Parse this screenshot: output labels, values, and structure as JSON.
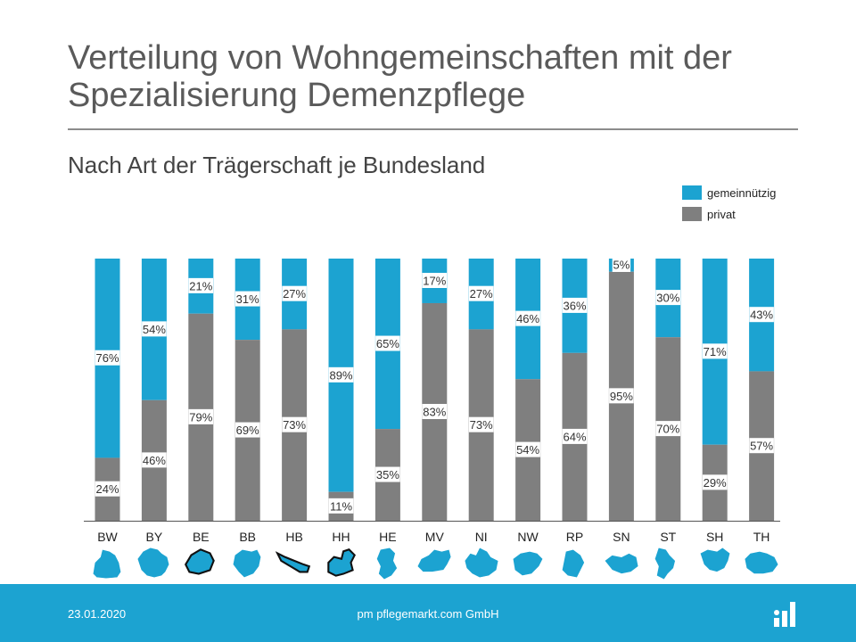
{
  "slide": {
    "title": "Verteilung von Wohngemeinschaften mit der Spezialisierung Demenzpflege",
    "subtitle": "Nach Art der Trägerschaft je Bundesland"
  },
  "legend": [
    {
      "label": "gemeinnützig",
      "color": "#1ca3d1"
    },
    {
      "label": "privat",
      "color": "#7f7f7f"
    }
  ],
  "chart_data": {
    "type": "bar",
    "stacked": true,
    "percent": true,
    "categories": [
      "BW",
      "BY",
      "BE",
      "BB",
      "HB",
      "HH",
      "HE",
      "MV",
      "NI",
      "NW",
      "RP",
      "SN",
      "ST",
      "SH",
      "TH"
    ],
    "series": [
      {
        "name": "privat",
        "color": "#7f7f7f",
        "values": [
          24,
          46,
          79,
          69,
          73,
          11,
          35,
          83,
          73,
          54,
          64,
          95,
          70,
          29,
          57
        ]
      },
      {
        "name": "gemeinnützig",
        "color": "#1ca3d1",
        "values": [
          76,
          54,
          21,
          31,
          27,
          89,
          65,
          17,
          27,
          46,
          36,
          5,
          30,
          71,
          43
        ]
      }
    ],
    "ylim": [
      0,
      100
    ],
    "title": "Verteilung von Wohngemeinschaften mit der Spezialisierung Demenzpflege",
    "xlabel": "",
    "ylabel": "",
    "legend_position": "top-right"
  },
  "map_icons": [
    {
      "state": "BW",
      "icon": "baden-wuerttemberg-map-icon",
      "color": "#1ca3d1"
    },
    {
      "state": "BY",
      "icon": "bayern-map-icon",
      "color": "#1ca3d1"
    },
    {
      "state": "BE",
      "icon": "berlin-map-icon",
      "color": "#1ca3d1"
    },
    {
      "state": "BB",
      "icon": "brandenburg-map-icon",
      "color": "#1ca3d1"
    },
    {
      "state": "HB",
      "icon": "bremen-map-icon",
      "color": "#1ca3d1"
    },
    {
      "state": "HH",
      "icon": "hamburg-map-icon",
      "color": "#1ca3d1"
    },
    {
      "state": "HE",
      "icon": "hessen-map-icon",
      "color": "#1ca3d1"
    },
    {
      "state": "MV",
      "icon": "mecklenburg-vorpommern-map-icon",
      "color": "#1ca3d1"
    },
    {
      "state": "NI",
      "icon": "niedersachsen-map-icon",
      "color": "#1ca3d1"
    },
    {
      "state": "NW",
      "icon": "nordrhein-westfalen-map-icon",
      "color": "#1ca3d1"
    },
    {
      "state": "RP",
      "icon": "rheinland-pfalz-map-icon",
      "color": "#1ca3d1"
    },
    {
      "state": "SN",
      "icon": "sachsen-map-icon",
      "color": "#1ca3d1"
    },
    {
      "state": "ST",
      "icon": "sachsen-anhalt-map-icon",
      "color": "#1ca3d1"
    },
    {
      "state": "SH",
      "icon": "schleswig-holstein-map-icon",
      "color": "#1ca3d1"
    },
    {
      "state": "TH",
      "icon": "thueringen-map-icon",
      "color": "#1ca3d1"
    }
  ],
  "footer": {
    "date": "23.01.2020",
    "company": "pm pflegemarkt.com GmbH",
    "logo_icon": "pflegemarkt-logo-icon"
  }
}
